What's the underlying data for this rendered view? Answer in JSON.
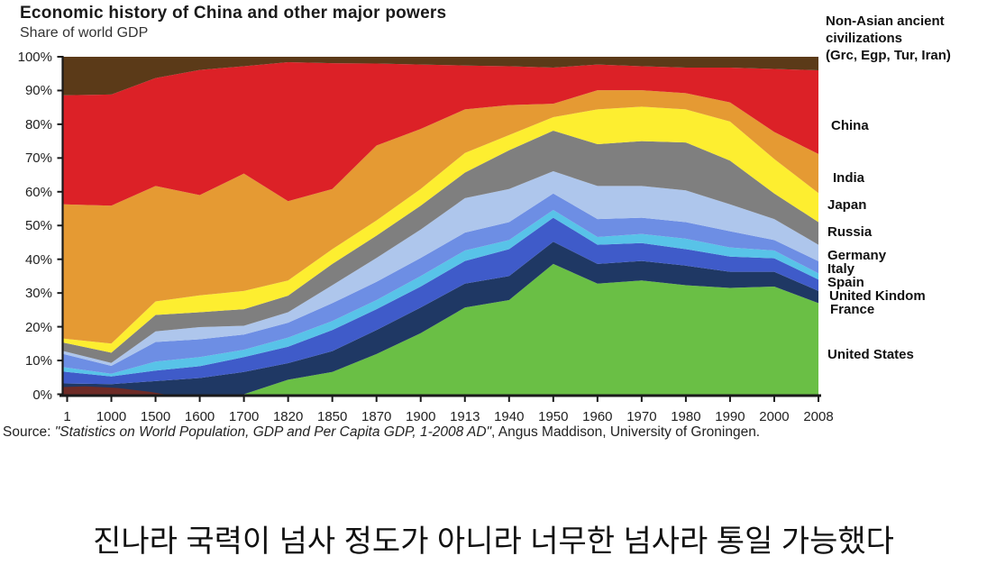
{
  "title": "Economic history of China and other major powers",
  "subtitle": "Share of world GDP",
  "source": {
    "prefix": "Source: ",
    "citation": "\"Statistics on World Population, GDP and Per Capita GDP, 1-2008 AD\"",
    "suffix": ", Angus Maddison, University of Groningen."
  },
  "caption_korean": "진나라 국력이 넘사 정도가 아니라 너무한 넘사라 통일 가능했다",
  "chart_data": {
    "type": "area",
    "stacked": true,
    "units": "percent of world GDP",
    "ylim": [
      0,
      100
    ],
    "grid": false,
    "legend_position": "right",
    "y_tick_labels": [
      "0%",
      "10%",
      "20%",
      "30%",
      "40%",
      "50%",
      "60%",
      "70%",
      "80%",
      "90%",
      "100%"
    ],
    "categories": [
      "1",
      "1000",
      "1500",
      "1600",
      "1700",
      "1820",
      "1850",
      "1870",
      "1900",
      "1913",
      "1940",
      "1950",
      "1960",
      "1970",
      "1980",
      "1990",
      "2000",
      "2008"
    ],
    "series": [
      {
        "id": "united-states",
        "name": "United States",
        "color": "#6abf45",
        "values": [
          0,
          0,
          0,
          0,
          0,
          4.3,
          6.6,
          11.9,
          18.1,
          25.7,
          27.9,
          38.6,
          32.8,
          33.7,
          32.3,
          31.5,
          31.9,
          27.0
        ]
      },
      {
        "id": "france",
        "name": "France",
        "color": "#1f3864",
        "values": [
          3.2,
          3.0,
          3.9,
          4.8,
          6.6,
          4.9,
          6.2,
          7.1,
          7.6,
          7.1,
          7.1,
          6.6,
          5.8,
          5.8,
          5.8,
          4.8,
          4.4,
          3.6
        ]
      },
      {
        "id": "united-kindom",
        "name": "United Kindom",
        "color": "#3f5bc9",
        "values": [
          3.5,
          2.3,
          3.1,
          3.5,
          4.4,
          4.9,
          6.2,
          6.2,
          6.2,
          6.7,
          8.0,
          7.1,
          5.7,
          5.3,
          4.9,
          4.5,
          4.0,
          3.4
        ]
      },
      {
        "id": "spain",
        "name": "Spain",
        "color": "#58c3e8",
        "values": [
          1.3,
          0.8,
          2.7,
          2.7,
          2.2,
          2.7,
          2.7,
          2.7,
          3.1,
          3.1,
          2.7,
          2.3,
          2.3,
          2.7,
          3.1,
          2.7,
          2.3,
          1.8
        ]
      },
      {
        "id": "italy",
        "name": "Italy",
        "color": "#6d8ee4",
        "values": [
          3.9,
          2.3,
          5.8,
          5.3,
          4.5,
          4.4,
          5.3,
          5.4,
          5.4,
          5.3,
          5.3,
          4.9,
          5.3,
          4.8,
          4.9,
          4.8,
          3.1,
          3.6
        ]
      },
      {
        "id": "germany",
        "name": "Germany",
        "color": "#aec6ec",
        "values": [
          0.9,
          0.9,
          3.1,
          3.6,
          2.6,
          3.1,
          5.3,
          7.1,
          8.4,
          10.2,
          9.8,
          6.6,
          9.8,
          9.4,
          9.4,
          8.0,
          6.2,
          4.9
        ]
      },
      {
        "id": "russia",
        "name": "Russia",
        "color": "#7f7f7f",
        "values": [
          2.5,
          3.0,
          4.9,
          4.4,
          4.9,
          4.9,
          6.3,
          6.6,
          7.1,
          7.6,
          11.5,
          12.0,
          12.4,
          13.3,
          14.2,
          12.9,
          7.6,
          6.7
        ]
      },
      {
        "id": "japan",
        "name": "Japan",
        "color": "#fdee30",
        "values": [
          1.2,
          2.7,
          4.0,
          5.0,
          5.4,
          4.5,
          4.4,
          4.5,
          4.9,
          5.8,
          4.5,
          4.0,
          10.3,
          10.2,
          9.8,
          11.6,
          10.2,
          8.6
        ]
      },
      {
        "id": "india",
        "name": "India",
        "color": "#e59a33",
        "values": [
          39.8,
          40.9,
          34.2,
          29.7,
          34.8,
          23.5,
          17.8,
          22.2,
          17.8,
          12.9,
          8.9,
          4.0,
          5.7,
          4.9,
          4.8,
          5.7,
          8.0,
          11.6
        ]
      },
      {
        "id": "china",
        "name": "China",
        "color": "#dc2127",
        "values": [
          32.3,
          32.9,
          32.0,
          37.1,
          31.8,
          41.2,
          37.3,
          24.3,
          19.1,
          13.0,
          11.5,
          10.7,
          7.6,
          7.1,
          7.6,
          10.3,
          18.7,
          24.8
        ]
      },
      {
        "id": "ancient",
        "name": "Non-Asian ancient civilizations (Grc, Egp, Tur, Iran)",
        "legend_lines": [
          "Non-Asian ancient",
          "civilizations",
          "(Grc, Egp, Tur, Iran)"
        ],
        "color": "#5b3a18",
        "values": [
          11.4,
          11.2,
          6.3,
          3.9,
          2.8,
          1.6,
          1.9,
          2.0,
          2.3,
          2.6,
          2.8,
          3.2,
          2.3,
          2.8,
          3.2,
          3.2,
          3.6,
          4.0
        ]
      }
    ]
  }
}
